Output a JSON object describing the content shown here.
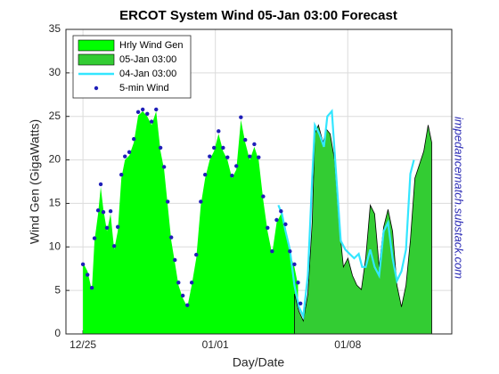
{
  "chart_data": {
    "type": "area",
    "title": "ERCOT System Wind  05-Jan 03:00 Forecast",
    "x_label": "Day/Date",
    "y_label": "Wind Gen (GigaWatts)",
    "annotation": "impedancematch.substack.com",
    "annotation_color": "#2b2bb5",
    "xlim": [
      -0.9,
      19.5
    ],
    "xticks": [
      {
        "value": 0,
        "label": "12/25"
      },
      {
        "value": 7,
        "label": "01/01"
      },
      {
        "value": 14,
        "label": "01/08"
      }
    ],
    "ylim": [
      0,
      35
    ],
    "yticks": [
      0,
      5,
      10,
      15,
      20,
      25,
      30,
      35
    ],
    "grid": true,
    "legend": "upper-left",
    "series": [
      {
        "name": "Hrly Wind Gen",
        "style": "area",
        "color": "#00ff00",
        "x": [
          0,
          0.24,
          0.47,
          0.61,
          0.8,
          0.94,
          1.08,
          1.27,
          1.46,
          1.65,
          1.84,
          2.03,
          2.22,
          2.45,
          2.69,
          2.92,
          3.16,
          3.4,
          3.63,
          3.87,
          4.1,
          4.29,
          4.48,
          4.67,
          4.86,
          5.05,
          5.28,
          5.52,
          5.75,
          5.99,
          6.23,
          6.46,
          6.7,
          6.93,
          7.17,
          7.41,
          7.64,
          7.88,
          8.11,
          8.35,
          8.58,
          8.82,
          9.06,
          9.29,
          9.53,
          9.76,
          10,
          10.24,
          10.47,
          10.71,
          10.94,
          11.18,
          11.37
        ],
        "values": [
          8.2,
          7.2,
          5,
          10.7,
          13.8,
          16.9,
          14.3,
          11.8,
          13.8,
          9.7,
          11.8,
          17.9,
          20,
          20.5,
          22,
          25.1,
          25.6,
          25,
          24,
          25.6,
          21,
          18.9,
          14.8,
          10.7,
          8.2,
          5.6,
          4.1,
          3.1,
          5.6,
          8.7,
          14.8,
          17.9,
          20,
          21,
          23,
          21,
          20,
          17.9,
          18.9,
          24.6,
          22,
          20,
          21.5,
          20,
          15.4,
          11.8,
          9.2,
          12.8,
          13.8,
          12.3,
          9.2,
          7.7,
          5.6
        ]
      },
      {
        "name": "05-Jan 03:00",
        "style": "area",
        "color": "#33cc33",
        "edge_color": "#000000",
        "x": [
          11.18,
          11.42,
          11.65,
          11.89,
          12.12,
          12.26,
          12.45,
          12.69,
          12.88,
          13.07,
          13.3,
          13.54,
          13.77,
          14.01,
          14.25,
          14.48,
          14.72,
          14.95,
          15.19,
          15.42,
          15.66,
          15.9,
          16.13,
          16.37,
          16.6,
          16.84,
          17.08,
          17.31,
          17.55,
          17.78,
          18.02,
          18.25,
          18.44
        ],
        "values": [
          4.6,
          2.6,
          1.5,
          4.6,
          12.8,
          23,
          24,
          22,
          23.5,
          23,
          20,
          12.8,
          7.7,
          8.7,
          6.7,
          5.6,
          5.1,
          8.7,
          14.8,
          13.8,
          7.7,
          12.3,
          14.3,
          11.8,
          5.6,
          3.1,
          5.6,
          10.7,
          17.9,
          19.4,
          21,
          24,
          22
        ]
      },
      {
        "name": "04-Jan 03:00",
        "style": "line",
        "color": "#33e6ff",
        "x": [
          10.33,
          10.52,
          10.71,
          10.94,
          11.18,
          11.42,
          11.65,
          11.89,
          12.12,
          12.26,
          12.5,
          12.74,
          12.92,
          13.16,
          13.4,
          13.63,
          13.87,
          14.1,
          14.34,
          14.58,
          14.76,
          14.95,
          15.19,
          15.42,
          15.66,
          15.9,
          16.13,
          16.37,
          16.6,
          16.84,
          17.08,
          17.31,
          17.5
        ],
        "values": [
          14.8,
          13.8,
          11.8,
          9.7,
          5.6,
          3.1,
          2,
          6.7,
          17.9,
          24,
          23,
          21.5,
          25,
          25.6,
          17.9,
          10.7,
          9.7,
          9.2,
          8.7,
          9.2,
          7.7,
          7.7,
          9.7,
          7.7,
          6.7,
          11.8,
          12.8,
          8.7,
          6.1,
          7.2,
          9.7,
          18.4,
          20
        ]
      },
      {
        "name": "5-min Wind",
        "style": "dots",
        "color": "#1f1fb8",
        "x": [
          0,
          0.24,
          0.47,
          0.61,
          0.8,
          0.94,
          1.08,
          1.27,
          1.46,
          1.65,
          1.84,
          2.03,
          2.22,
          2.45,
          2.69,
          2.92,
          3.16,
          3.4,
          3.63,
          3.87,
          4.1,
          4.29,
          4.48,
          4.67,
          4.86,
          5.05,
          5.28,
          5.52,
          5.75,
          5.99,
          6.23,
          6.46,
          6.7,
          6.93,
          7.17,
          7.41,
          7.64,
          7.88,
          8.11,
          8.35,
          8.58,
          8.82,
          9.06,
          9.29,
          9.53,
          9.76,
          10,
          10.24,
          10.47,
          10.71,
          10.94,
          11.18,
          11.37,
          11.5
        ],
        "values": [
          8,
          6.8,
          5.3,
          11,
          14.2,
          17.2,
          14,
          12.2,
          14.1,
          10.1,
          12.3,
          18.3,
          20.4,
          20.9,
          22.4,
          25.5,
          25.8,
          25.3,
          24.4,
          25.8,
          21.4,
          19.2,
          15.2,
          11.1,
          8.5,
          5.9,
          4.4,
          3.3,
          5.9,
          9.1,
          15.2,
          18.3,
          20.4,
          21.4,
          23.3,
          21.4,
          20.3,
          18.2,
          19.3,
          24.9,
          22.3,
          20.4,
          21.8,
          20.3,
          15.8,
          12.2,
          9.5,
          13.1,
          14.1,
          12.6,
          9.5,
          8,
          5.9,
          3.5
        ]
      }
    ]
  }
}
